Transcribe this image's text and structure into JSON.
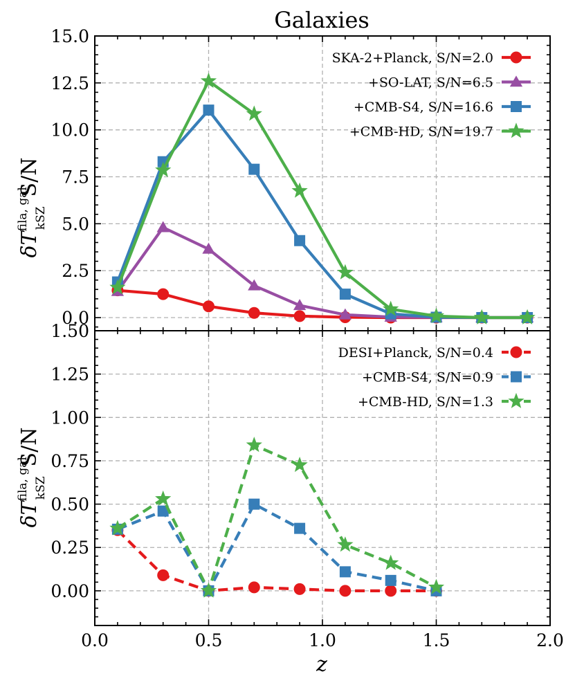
{
  "figure": {
    "title": "Galaxies",
    "xlabel": "z",
    "ylabel_main": "δT",
    "ylabel_sub": "kSZ",
    "ylabel_sup": "fila, gal",
    "ylabel_suffix": "S/N"
  },
  "chart_data": [
    {
      "type": "line",
      "title": "Galaxies",
      "xlabel": "z",
      "ylabel": "δT_kSZ^{fila, gal} S/N",
      "xlim": [
        0.0,
        2.0
      ],
      "ylim": [
        -0.7,
        15.0
      ],
      "x_ticks": [
        "0.0",
        "0.5",
        "1.0",
        "1.5",
        "2.0"
      ],
      "y_ticks": [
        "0.0",
        "2.5",
        "5.0",
        "7.5",
        "10.0",
        "12.5",
        "15.0"
      ],
      "grid": true,
      "legend_position": "top-right",
      "line_style": "solid",
      "series": [
        {
          "name": "SKA-2+Planck, S/N=2.0",
          "color": "#e41a1c",
          "marker": "circle",
          "x": [
            0.1,
            0.3,
            0.5,
            0.7,
            0.9,
            1.1,
            1.3,
            1.5,
            1.7,
            1.9
          ],
          "values": [
            1.45,
            1.25,
            0.6,
            0.25,
            0.08,
            0.02,
            0.0,
            0.0,
            0.0,
            0.0
          ]
        },
        {
          "name": "+SO-LAT, S/N=6.5",
          "color": "#984ea3",
          "marker": "triangle",
          "x": [
            0.1,
            0.3,
            0.5,
            0.7,
            0.9,
            1.1,
            1.3,
            1.5,
            1.7,
            1.9
          ],
          "values": [
            1.4,
            4.8,
            3.65,
            1.7,
            0.65,
            0.15,
            0.03,
            0.01,
            0.0,
            0.0
          ]
        },
        {
          "name": "+CMB-S4, S/N=16.6",
          "color": "#377eb8",
          "marker": "square",
          "x": [
            0.1,
            0.3,
            0.5,
            0.7,
            0.9,
            1.1,
            1.3,
            1.5,
            1.7,
            1.9
          ],
          "values": [
            1.9,
            8.3,
            11.05,
            7.9,
            4.1,
            1.25,
            0.2,
            0.02,
            0.0,
            0.0
          ]
        },
        {
          "name": "+CMB-HD, S/N=19.7",
          "color": "#4daf4a",
          "marker": "star",
          "x": [
            0.1,
            0.3,
            0.5,
            0.7,
            0.9,
            1.1,
            1.3,
            1.5,
            1.7,
            1.9
          ],
          "values": [
            1.6,
            7.85,
            12.6,
            10.85,
            6.75,
            2.4,
            0.45,
            0.08,
            0.0,
            0.0
          ]
        }
      ]
    },
    {
      "type": "line",
      "xlabel": "z",
      "ylabel": "δT_kSZ^{fila, gal} S/N",
      "xlim": [
        0.0,
        2.0
      ],
      "ylim": [
        -0.2,
        1.5
      ],
      "x_ticks": [
        "0.0",
        "0.5",
        "1.0",
        "1.5",
        "2.0"
      ],
      "y_ticks": [
        "0.00",
        "0.25",
        "0.50",
        "0.75",
        "1.00",
        "1.25",
        "1.50"
      ],
      "grid": true,
      "legend_position": "top-right",
      "line_style": "dashed",
      "series": [
        {
          "name": "DESI+Planck, S/N=0.4",
          "color": "#e41a1c",
          "marker": "circle",
          "x": [
            0.1,
            0.3,
            0.5,
            0.7,
            0.9,
            1.1,
            1.3,
            1.5
          ],
          "values": [
            0.35,
            0.09,
            0.0,
            0.02,
            0.01,
            0.0,
            0.0,
            0.0
          ]
        },
        {
          "name": "+CMB-S4, S/N=0.9",
          "color": "#377eb8",
          "marker": "square",
          "x": [
            0.1,
            0.3,
            0.5,
            0.7,
            0.9,
            1.1,
            1.3,
            1.5
          ],
          "values": [
            0.355,
            0.46,
            0.0,
            0.5,
            0.36,
            0.11,
            0.06,
            0.0
          ]
        },
        {
          "name": "+CMB-HD, S/N=1.3",
          "color": "#4daf4a",
          "marker": "star",
          "x": [
            0.1,
            0.3,
            0.5,
            0.7,
            0.9,
            1.1,
            1.3,
            1.5
          ],
          "values": [
            0.36,
            0.53,
            0.0,
            0.84,
            0.725,
            0.265,
            0.16,
            0.02
          ]
        }
      ]
    }
  ]
}
